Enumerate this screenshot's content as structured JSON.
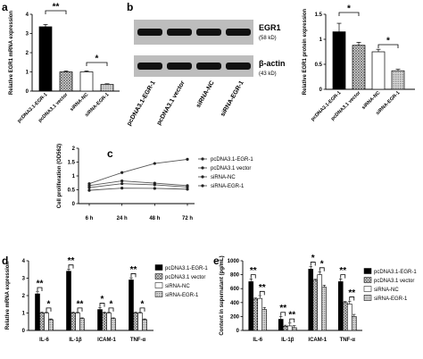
{
  "patterns": {
    "black": "#000000",
    "grid": "#7f7f7f",
    "white": "#ffffff",
    "dots": "#9a9a9a"
  },
  "chart_data": [
    {
      "panel": "a",
      "type": "bar",
      "ylabel": "Relative EGR1 mRNA expression",
      "ylim": [
        0,
        4
      ],
      "yticks": [
        0,
        1,
        2,
        3,
        4
      ],
      "categories": [
        "pcDNA3.1-EGR-1",
        "pcDNA3.1 vector",
        "siRNA-NC",
        "siRNA-EGR-1"
      ],
      "values": [
        3.35,
        1.0,
        1.0,
        0.35
      ],
      "errors": [
        0.12,
        0.05,
        0.05,
        0.03
      ],
      "fills": [
        "black",
        "grid",
        "white",
        "dots"
      ],
      "significance": [
        {
          "pair": [
            0,
            1
          ],
          "label": "**"
        },
        {
          "pair": [
            2,
            3
          ],
          "label": "*"
        }
      ]
    },
    {
      "panel": "b",
      "type": "blot",
      "bands": [
        {
          "label": "EGR1",
          "sub": "(58 kD)"
        },
        {
          "label": "β-actin",
          "sub": "(43 kD)"
        }
      ],
      "lanes": [
        "pcDNA3.1-EGR-1",
        "pcDNA3.1 vector",
        "siRNA-NC",
        "siRNA-EGR-1"
      ]
    },
    {
      "panel": "b",
      "type": "bar",
      "ylabel": "Relative EGR1 protein expression",
      "ylim": [
        0,
        1.5
      ],
      "yticks": [
        0.0,
        0.5,
        1.0,
        1.5
      ],
      "categories": [
        "pcDNA3.1-EGR-1",
        "pcDNA3.1 vector",
        "siRNA-NC",
        "siRNA-EGR-1"
      ],
      "values": [
        1.15,
        0.88,
        0.75,
        0.37
      ],
      "errors": [
        0.17,
        0.06,
        0.05,
        0.03
      ],
      "fills": [
        "black",
        "grid",
        "white",
        "dots"
      ],
      "significance": [
        {
          "pair": [
            0,
            1
          ],
          "label": "*"
        },
        {
          "pair": [
            2,
            3
          ],
          "label": "*"
        }
      ]
    },
    {
      "panel": "c",
      "type": "line",
      "ylabel": "Cell proliferation (OD562)",
      "ylim": [
        0.0,
        2.0
      ],
      "yticks": [
        0.0,
        0.5,
        1.0,
        1.5,
        2.0
      ],
      "categories": [
        "6 h",
        "24 h",
        "48 h",
        "72 h"
      ],
      "series": [
        {
          "name": "pcDNA3.1-EGR-1",
          "values": [
            0.72,
            1.12,
            1.45,
            1.6
          ],
          "marker": "circle"
        },
        {
          "name": "pcDNA3.1 vector",
          "values": [
            0.65,
            0.82,
            0.74,
            0.65
          ],
          "marker": "square"
        },
        {
          "name": "siRNA-NC",
          "values": [
            0.58,
            0.72,
            0.68,
            0.6
          ],
          "marker": "triangle"
        },
        {
          "name": "siRNA-EGR-1",
          "values": [
            0.48,
            0.56,
            0.55,
            0.52
          ],
          "marker": "diamond"
        }
      ]
    },
    {
      "panel": "d",
      "type": "bar",
      "ylabel": "Relative mRNA expression",
      "ylim": [
        0,
        4
      ],
      "yticks": [
        0,
        1,
        2,
        3,
        4
      ],
      "categories": [
        "IL-6",
        "IL-1β",
        "ICAM-1",
        "TNF-α"
      ],
      "series": [
        {
          "name": "pcDNA3.1-EGR-1",
          "values": [
            2.1,
            3.4,
            1.2,
            2.9
          ],
          "fill": "black"
        },
        {
          "name": "pcDNA3.1 vector",
          "values": [
            1.0,
            1.0,
            1.0,
            1.0
          ],
          "fill": "grid"
        },
        {
          "name": "siRNA-NC",
          "values": [
            1.0,
            1.0,
            1.0,
            1.0
          ],
          "fill": "white"
        },
        {
          "name": "siRNA-EGR-1",
          "values": [
            0.62,
            0.68,
            0.68,
            0.62
          ],
          "fill": "dots"
        }
      ],
      "errors": [
        0.12,
        0.05,
        0.05,
        0.04
      ],
      "significance": [
        "**",
        "*",
        "**",
        "**",
        "*",
        "*",
        "**",
        "*"
      ]
    },
    {
      "panel": "e",
      "type": "bar",
      "ylabel": "Content in supernatant (pg/mL)",
      "ylim": [
        0,
        1000
      ],
      "yticks": [
        0,
        200,
        400,
        600,
        800,
        1000
      ],
      "categories": [
        "IL-6",
        "IL-1β",
        "ICAM-1",
        "TNF-α"
      ],
      "series": [
        {
          "name": "pcDNA3.1-EGR-1",
          "values": [
            700,
            160,
            880,
            700
          ],
          "fill": "black"
        },
        {
          "name": "pcDNA3.1 vector",
          "values": [
            450,
            60,
            720,
            400
          ],
          "fill": "grid"
        },
        {
          "name": "siRNA-NC",
          "values": [
            460,
            65,
            800,
            380
          ],
          "fill": "white"
        },
        {
          "name": "siRNA-EGR-1",
          "values": [
            300,
            40,
            620,
            200
          ],
          "fill": "dots"
        }
      ],
      "errors": [
        40,
        15,
        40,
        30
      ],
      "significance": [
        "**",
        "**",
        "**",
        "**",
        "*",
        "*",
        "**",
        "**"
      ]
    }
  ],
  "panel_labels": [
    "a",
    "b",
    "c",
    "d",
    "e"
  ]
}
